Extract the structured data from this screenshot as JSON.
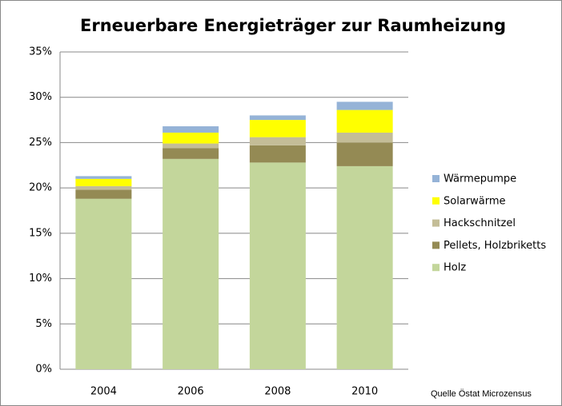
{
  "chart_data": {
    "type": "stacked_bar",
    "title": "Erneuerbare Energieträger zur Raumheizung",
    "categories": [
      "2004",
      "2006",
      "2008",
      "2010"
    ],
    "series": [
      {
        "name": "Holz",
        "color": "#c3d69b",
        "values": [
          18.8,
          23.2,
          22.8,
          22.4
        ]
      },
      {
        "name": "Pellets, Holzbriketts",
        "color": "#948a54",
        "values": [
          1.0,
          1.2,
          1.9,
          2.6
        ]
      },
      {
        "name": "Hackschnitzel",
        "color": "#c4bd97",
        "values": [
          0.4,
          0.5,
          0.9,
          1.1
        ]
      },
      {
        "name": "Solarwärme",
        "color": "#ffff00",
        "values": [
          0.8,
          1.2,
          1.9,
          2.5
        ]
      },
      {
        "name": "Wärmepumpe",
        "color": "#95b3d7",
        "values": [
          0.3,
          0.7,
          0.5,
          0.9
        ]
      }
    ],
    "ylim": [
      0,
      35
    ],
    "yticks": [
      {
        "value": 0,
        "label": "0%"
      },
      {
        "value": 5,
        "label": "5%"
      },
      {
        "value": 10,
        "label": "10%"
      },
      {
        "value": 15,
        "label": "15%"
      },
      {
        "value": 20,
        "label": "20%"
      },
      {
        "value": 25,
        "label": "25%"
      },
      {
        "value": 30,
        "label": "30%"
      },
      {
        "value": 35,
        "label": "35%"
      }
    ],
    "grid": true,
    "legend": "right",
    "source": "Quelle Östat Microzensus"
  }
}
